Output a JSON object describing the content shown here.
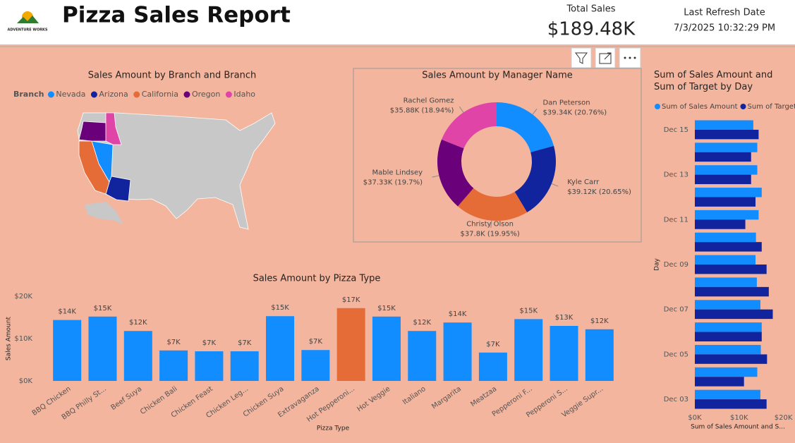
{
  "header": {
    "logo": "ADVENTURE WORKS",
    "title": "Pizza Sales Report",
    "kpi_label": "Total Sales",
    "kpi_value": "$189.48K",
    "refresh_label": "Last Refresh Date",
    "refresh_value": "7/3/2025 10:32:29 PM"
  },
  "chart_data": [
    {
      "type": "map",
      "title": "Sales Amount by Branch and Branch",
      "legend_title": "Branch",
      "series": [
        {
          "name": "Nevada",
          "color": "#118DFF"
        },
        {
          "name": "Arizona",
          "color": "#12239E"
        },
        {
          "name": "California",
          "color": "#E66C37"
        },
        {
          "name": "Oregon",
          "color": "#6B007B"
        },
        {
          "name": "Idaho",
          "color": "#E044A7"
        }
      ]
    },
    {
      "type": "donut",
      "title": "Sales Amount by Manager Name",
      "categories": [
        "Dan Peterson",
        "Kyle Carr",
        "Christy Olson",
        "Mable Lindsey",
        "Rachel Gomez"
      ],
      "values": [
        39.34,
        39.12,
        37.8,
        37.33,
        35.88
      ],
      "value_labels": [
        "$39.34K (20.76%)",
        "$39.12K (20.65%)",
        "$37.8K (19.95%)",
        "$37.33K (19.7%)",
        "$35.88K (18.94%)"
      ],
      "colors": [
        "#118DFF",
        "#12239E",
        "#E66C37",
        "#6B007B",
        "#E044A7"
      ]
    },
    {
      "type": "bar",
      "title": "Sales Amount by Pizza Type",
      "x_label": "Pizza Type",
      "y_label": "Sales Amount",
      "categories": [
        "BBQ Chicken",
        "BBQ Philly St...",
        "Beef Suya",
        "Chicken Bali",
        "Chicken Feast",
        "Chicken Leg...",
        "Chicken Suya",
        "Extravaganza",
        "Hot Pepperoni...",
        "Hot Veggie",
        "Italiano",
        "Margarita",
        "Meatzaa",
        "Pepperoni F...",
        "Pepperoni S...",
        "Veggie Supr..."
      ],
      "values": [
        14400,
        15200,
        11800,
        7200,
        7000,
        7000,
        15300,
        7300,
        17200,
        15200,
        11800,
        13800,
        6700,
        14600,
        13000,
        12200
      ],
      "value_labels": [
        "$14K",
        "$15K",
        "$12K",
        "$7K",
        "$7K",
        "$7K",
        "$15K",
        "$7K",
        "$17K",
        "$15K",
        "$12K",
        "$14K",
        "$7K",
        "$15K",
        "$13K",
        "$12K"
      ],
      "colors": [
        "#118DFF",
        "#118DFF",
        "#118DFF",
        "#118DFF",
        "#118DFF",
        "#118DFF",
        "#118DFF",
        "#118DFF",
        "#E66C37",
        "#118DFF",
        "#118DFF",
        "#118DFF",
        "#118DFF",
        "#118DFF",
        "#118DFF",
        "#118DFF"
      ],
      "ylim": [
        0,
        20000
      ],
      "yticks": [
        {
          "value": 0,
          "label": "$0K"
        },
        {
          "value": 10000,
          "label": "$10K"
        },
        {
          "value": 20000,
          "label": "$20K"
        }
      ]
    },
    {
      "type": "hbar",
      "title": "Sum of Sales Amount and Sum of Target by Day",
      "x_label": "Sum of Sales Amount and S...",
      "y_label": "Day",
      "categories": [
        "Dec 15",
        null,
        "Dec 13",
        null,
        "Dec 11",
        null,
        "Dec 09",
        null,
        "Dec 07",
        null,
        "Dec 05",
        null,
        "Dec 03"
      ],
      "series": [
        {
          "name": "Sum of Sales Amount",
          "color": "#118DFF",
          "values": [
            13200,
            14100,
            14100,
            15100,
            14400,
            13800,
            13700,
            14000,
            14800,
            15100,
            14900,
            14100,
            14800
          ]
        },
        {
          "name": "Sum of Target",
          "color": "#12239E",
          "values": [
            14400,
            12700,
            12700,
            13700,
            11400,
            15100,
            16200,
            16700,
            17600,
            15100,
            16300,
            11100,
            16200
          ]
        }
      ],
      "xlim": [
        0,
        21500
      ],
      "xticks": [
        {
          "value": 0,
          "label": "$0K"
        },
        {
          "value": 10000,
          "label": "$10K"
        },
        {
          "value": 20000,
          "label": "$20K"
        }
      ]
    }
  ]
}
